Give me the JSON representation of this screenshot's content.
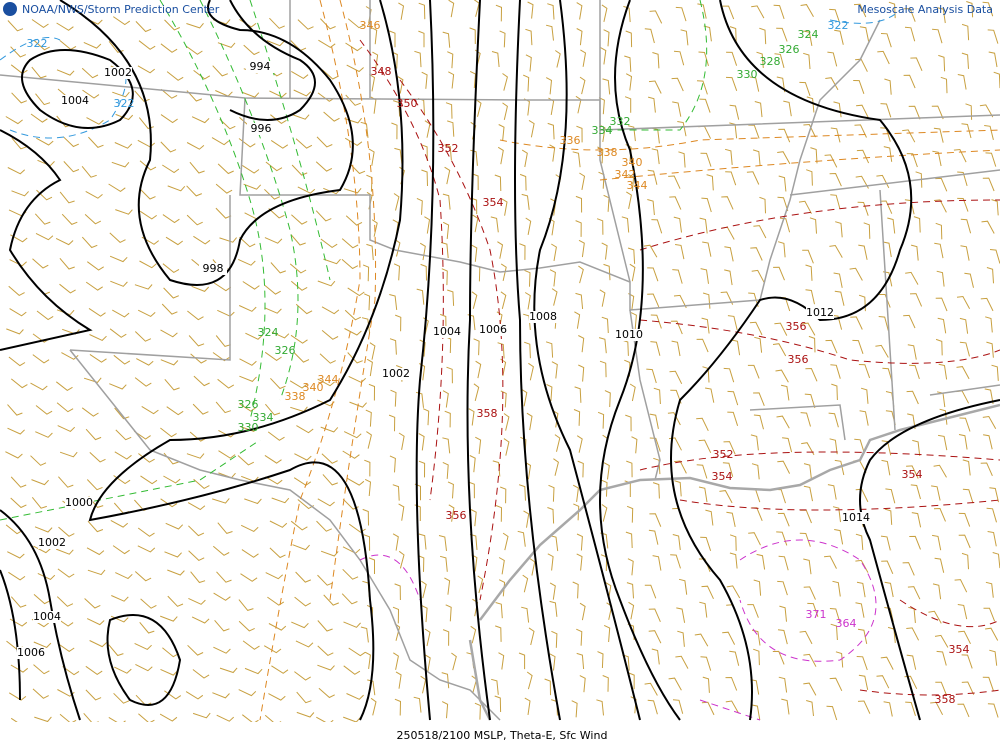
{
  "header": {
    "agency": "NOAA/NWS/Storm Prediction Center",
    "product": "Mesoscale Analysis Data"
  },
  "footer": "250518/2100 MSLP, Theta-E, Sfc Wind",
  "isobar_labels": [
    1002,
    1004,
    994,
    996,
    998,
    1004,
    1006,
    1008,
    1010,
    1002,
    1012,
    1014,
    1000,
    1002,
    1004,
    1006
  ],
  "theta_e_labels": [
    322,
    322,
    322,
    326,
    324,
    328,
    330,
    334,
    332,
    336,
    338,
    340,
    342,
    344,
    346,
    348,
    350,
    352,
    354,
    324,
    326,
    326,
    330,
    334,
    338,
    340,
    344,
    356,
    356,
    358,
    356,
    352,
    354,
    354,
    371,
    364,
    354,
    358
  ]
}
